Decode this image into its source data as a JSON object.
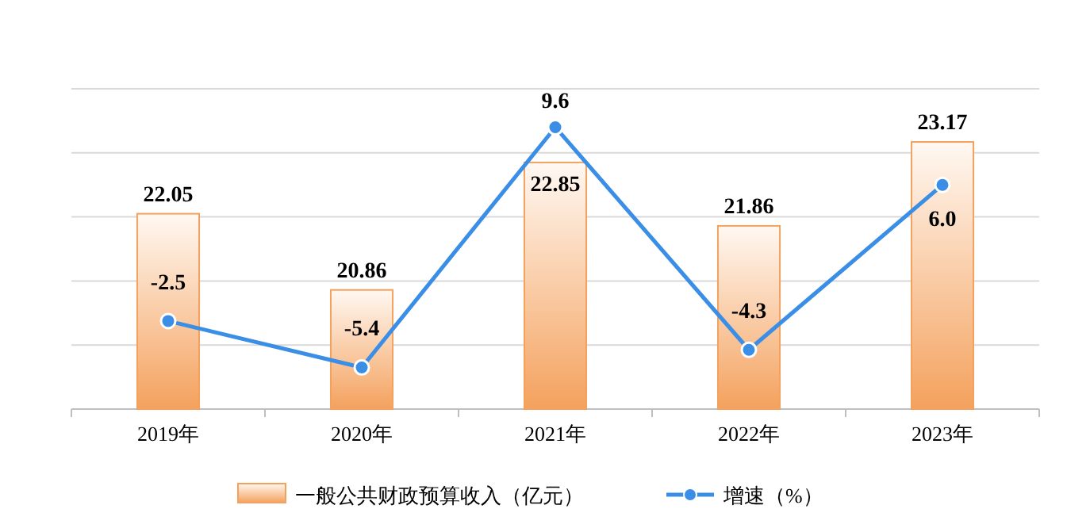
{
  "chart_data": {
    "type": "bar",
    "categories": [
      "2019年",
      "2020年",
      "2021年",
      "2022年",
      "2023年"
    ],
    "ylim": [
      19,
      24
    ],
    "yticks": [
      {
        "value": 19,
        "label": null
      },
      {
        "value": 20,
        "label": null
      },
      {
        "value": 21,
        "label": null
      },
      {
        "value": 22,
        "label": null
      },
      {
        "value": 23,
        "label": null
      },
      {
        "value": 24,
        "label": null
      }
    ],
    "y2lim": [
      -8,
      12
    ],
    "tick_labels": "x",
    "grid": "y",
    "legend": "bottom",
    "data_labels": true,
    "series": [
      {
        "name": "一般公共财政预算收入（亿元）",
        "color": "#f4a15d",
        "values": [
          22.05,
          20.86,
          22.85,
          21.86,
          23.17
        ]
      },
      {
        "name": "增速（%）",
        "type": "line",
        "axis": "y2",
        "color": "#3b8ee6",
        "marker": "circle",
        "values": [
          -2.5,
          -5.4,
          9.6,
          -4.3,
          6.0
        ],
        "value_labels": [
          "-2.5",
          "-5.4",
          "9.6",
          "-4.3",
          "6.0"
        ]
      }
    ]
  }
}
